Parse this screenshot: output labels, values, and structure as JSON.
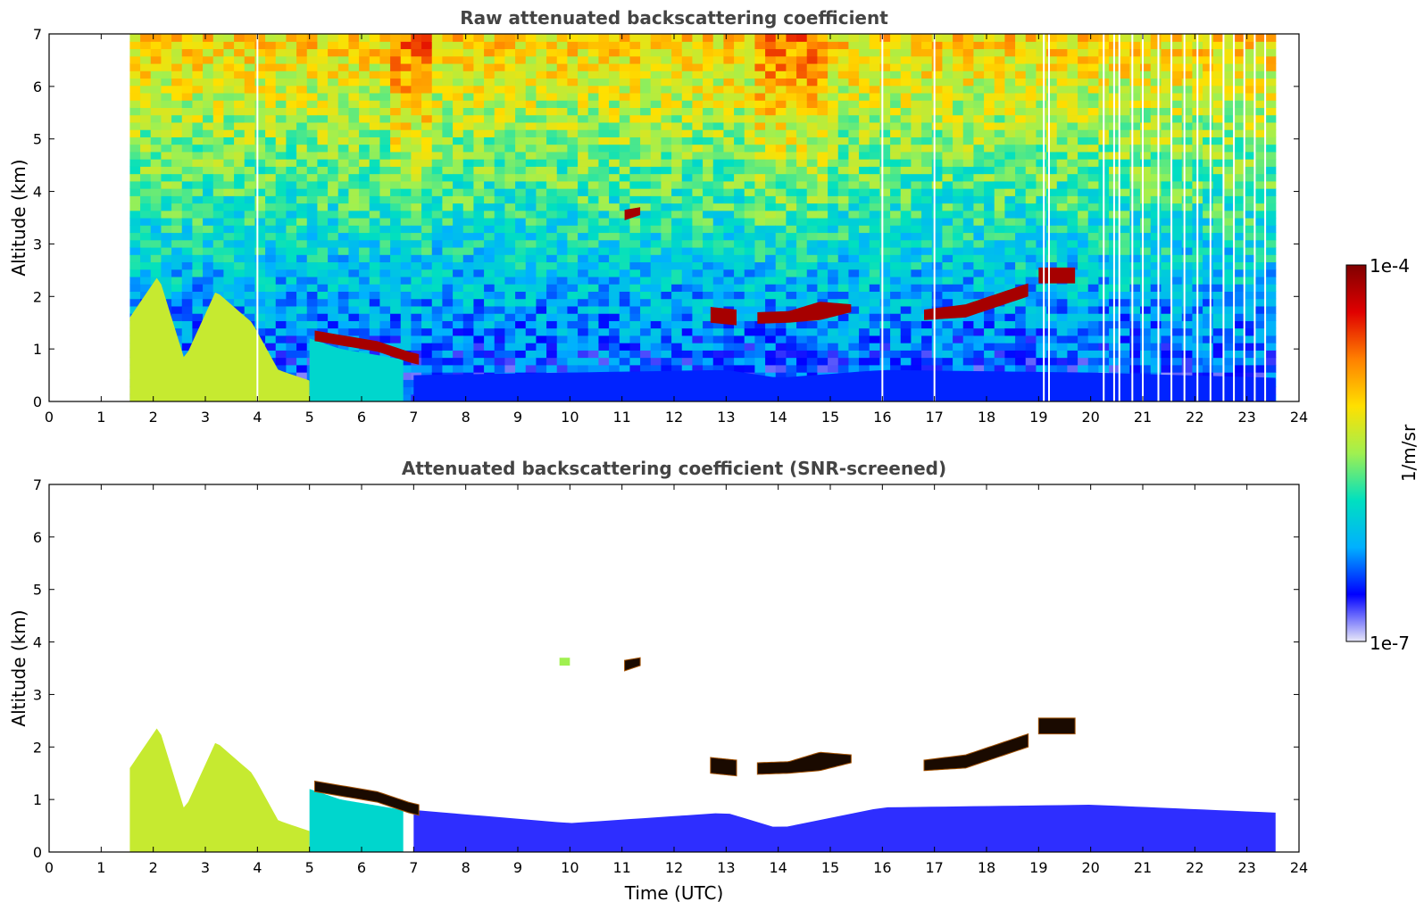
{
  "chart_data": [
    {
      "type": "heatmap",
      "title": "Raw attenuated backscattering coefficient",
      "xlabel": "",
      "ylabel": "Altitude (km)",
      "xlim": [
        0,
        24
      ],
      "ylim": [
        0,
        7
      ],
      "x_ticks": [
        "0",
        "1",
        "2",
        "3",
        "4",
        "5",
        "6",
        "7",
        "8",
        "9",
        "10",
        "11",
        "12",
        "13",
        "14",
        "15",
        "16",
        "17",
        "18",
        "19",
        "20",
        "21",
        "22",
        "23",
        "24"
      ],
      "y_ticks": [
        "0",
        "1",
        "2",
        "3",
        "4",
        "5",
        "6",
        "7"
      ],
      "data_time_range": [
        1.55,
        23.55
      ],
      "noise_background": true,
      "dropout_times": [
        4.0,
        16.0,
        17.0,
        19.1,
        19.2,
        20.25,
        20.45,
        20.55,
        20.8,
        21.0,
        21.3,
        21.55,
        21.8,
        22.05,
        22.3,
        22.55,
        22.75,
        22.95,
        23.15,
        23.35
      ],
      "layers": [
        {
          "name": "aerosol-1",
          "t": [
            1.55,
            2.1,
            2.6,
            3.2,
            3.9,
            4.4,
            5.0
          ],
          "top": [
            1.6,
            2.4,
            0.8,
            2.1,
            1.5,
            0.6,
            0.4
          ],
          "level": 0.55
        },
        {
          "name": "aerosol-2",
          "t": [
            5.0,
            5.6,
            6.2,
            6.8
          ],
          "top": [
            1.2,
            1.0,
            0.9,
            0.8
          ],
          "level": 0.35
        },
        {
          "name": "cloud-1",
          "t": [
            5.1,
            5.7,
            6.3,
            6.9,
            7.1
          ],
          "base": [
            1.15,
            1.05,
            0.95,
            0.75,
            0.7
          ],
          "top": [
            1.35,
            1.25,
            1.15,
            0.95,
            0.9
          ],
          "level": 0.95
        },
        {
          "name": "cloud-2",
          "t": [
            11.05,
            11.35
          ],
          "base": [
            3.45,
            3.55
          ],
          "top": [
            3.65,
            3.7
          ],
          "level": 0.95
        },
        {
          "name": "cloud-3",
          "t": [
            12.7,
            13.2
          ],
          "base": [
            1.5,
            1.45
          ],
          "top": [
            1.8,
            1.75
          ],
          "level": 0.95
        },
        {
          "name": "cloud-4",
          "t": [
            13.6,
            14.2,
            14.8,
            15.4
          ],
          "base": [
            1.48,
            1.5,
            1.55,
            1.7
          ],
          "top": [
            1.7,
            1.72,
            1.9,
            1.85
          ],
          "level": 0.95
        },
        {
          "name": "cloud-5",
          "t": [
            16.8,
            17.6,
            18.2,
            18.8
          ],
          "base": [
            1.55,
            1.6,
            1.8,
            2.0
          ],
          "top": [
            1.75,
            1.85,
            2.05,
            2.25
          ],
          "level": 0.95
        },
        {
          "name": "cloud-6",
          "t": [
            19.0,
            19.7
          ],
          "base": [
            2.25,
            2.25
          ],
          "top": [
            2.55,
            2.55
          ],
          "level": 0.95
        }
      ],
      "boundary_layer": {
        "t": [
          7.0,
          13.0,
          14.0,
          16.0,
          20.0,
          23.55
        ],
        "top": [
          0.5,
          0.6,
          0.45,
          0.6,
          0.55,
          0.45
        ],
        "level": 0.15
      }
    },
    {
      "type": "heatmap",
      "title": "Attenuated backscattering coefficient (SNR-screened)",
      "xlabel": "Time (UTC)",
      "ylabel": "Altitude (km)",
      "xlim": [
        0,
        24
      ],
      "ylim": [
        0,
        7
      ],
      "x_ticks": [
        "0",
        "1",
        "2",
        "3",
        "4",
        "5",
        "6",
        "7",
        "8",
        "9",
        "10",
        "11",
        "12",
        "13",
        "14",
        "15",
        "16",
        "17",
        "18",
        "19",
        "20",
        "21",
        "22",
        "23",
        "24"
      ],
      "y_ticks": [
        "0",
        "1",
        "2",
        "3",
        "4",
        "5",
        "6",
        "7"
      ],
      "data_time_range": [
        1.55,
        23.55
      ],
      "noise_background": false,
      "layers": [
        {
          "name": "aerosol-1",
          "t": [
            1.55,
            2.1,
            2.6,
            3.2,
            3.9,
            4.4,
            5.0
          ],
          "top": [
            1.6,
            2.4,
            0.8,
            2.1,
            1.5,
            0.6,
            0.4
          ],
          "level": 0.55
        },
        {
          "name": "aerosol-2",
          "t": [
            5.0,
            5.6,
            6.2,
            6.8
          ],
          "top": [
            1.2,
            1.0,
            0.9,
            0.8
          ],
          "level": 0.35
        },
        {
          "name": "cloud-1",
          "t": [
            5.1,
            5.7,
            6.3,
            6.9,
            7.1
          ],
          "base": [
            1.15,
            1.05,
            0.95,
            0.75,
            0.7
          ],
          "top": [
            1.35,
            1.25,
            1.15,
            0.95,
            0.9
          ],
          "level": 1.0
        },
        {
          "name": "cloud-2",
          "t": [
            11.05,
            11.35
          ],
          "base": [
            3.45,
            3.55
          ],
          "top": [
            3.65,
            3.7
          ],
          "level": 1.0
        },
        {
          "name": "cloud-3",
          "t": [
            12.7,
            13.2
          ],
          "base": [
            1.5,
            1.45
          ],
          "top": [
            1.8,
            1.75
          ],
          "level": 1.0
        },
        {
          "name": "cloud-4",
          "t": [
            13.6,
            14.2,
            14.8,
            15.4
          ],
          "base": [
            1.48,
            1.5,
            1.55,
            1.7
          ],
          "top": [
            1.7,
            1.72,
            1.9,
            1.85
          ],
          "level": 1.0
        },
        {
          "name": "cloud-5",
          "t": [
            16.8,
            17.6,
            18.2,
            18.8
          ],
          "base": [
            1.55,
            1.6,
            1.8,
            2.0
          ],
          "top": [
            1.75,
            1.85,
            2.05,
            2.25
          ],
          "level": 1.0
        },
        {
          "name": "cloud-6",
          "t": [
            19.0,
            19.7
          ],
          "base": [
            2.25,
            2.25
          ],
          "top": [
            2.55,
            2.55
          ],
          "level": 1.0
        },
        {
          "name": "patch-green",
          "t": [
            9.8,
            10.0
          ],
          "base": [
            3.55,
            3.55
          ],
          "top": [
            3.7,
            3.7
          ],
          "level": 0.5
        }
      ],
      "boundary_layer": {
        "t": [
          7.0,
          10.0,
          13.0,
          14.0,
          16.0,
          20.0,
          23.55
        ],
        "top": [
          0.8,
          0.55,
          0.75,
          0.45,
          0.85,
          0.9,
          0.75
        ],
        "level": 0.12
      }
    }
  ],
  "colorbar": {
    "max_label": "1e-4",
    "min_label": "1e-7",
    "unit_label": "1/m/sr",
    "colors": [
      "#e8e8f8",
      "#0000ff",
      "#00b0ff",
      "#00e0c0",
      "#a0f050",
      "#ffe000",
      "#ff8000",
      "#e00000",
      "#800000"
    ]
  }
}
